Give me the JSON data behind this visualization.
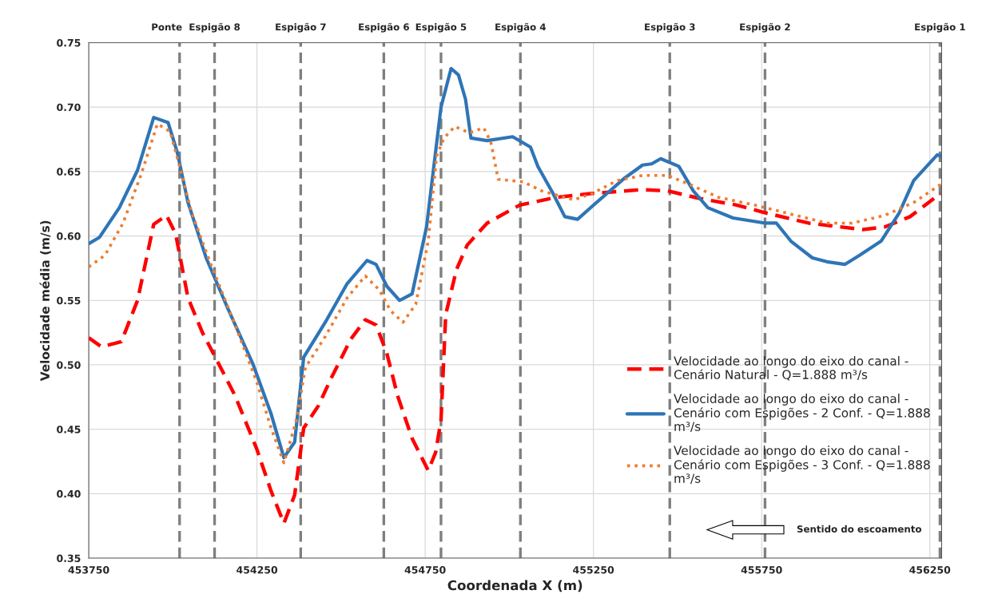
{
  "chart_data": {
    "type": "line",
    "xlabel": "Coordenada X (m)",
    "ylabel": "Velocidade média (m/s)",
    "xlim": [
      453750,
      456285
    ],
    "xticks": [
      453750,
      454250,
      454750,
      455250,
      455750,
      456250
    ],
    "ylim": [
      0.35,
      0.75
    ],
    "yticks": [
      0.35,
      {
        "value": 0.4,
        "label": "0.40"
      },
      0.45,
      {
        "value": 0.5,
        "label": "0.50"
      },
      0.55,
      {
        "value": 0.6,
        "label": "0.60"
      },
      0.65,
      {
        "value": 0.7,
        "label": "0.70"
      },
      0.75
    ],
    "grid": true,
    "legend": "bottom right",
    "marker": "none",
    "series": [
      {
        "name": "Velocidade ao longo do eixo do canal -\nCenário Natural - Q=1.888 m³/s",
        "color": "#ff0000",
        "line_style": "dashed",
        "x": [
          453750,
          453788,
          453847,
          453895,
          453943,
          453981,
          454008,
          454045,
          454088,
          454126,
          454185,
          454249,
          454292,
          454330,
          454362,
          454389,
          454432,
          454475,
          454529,
          454572,
          454604,
          454636,
          454668,
          454711,
          454759,
          454781,
          454797,
          454811,
          454843,
          454875,
          454934,
          455031,
          455139,
          455246,
          455396,
          455471,
          455568,
          455676,
          455761,
          455890,
          456051,
          456116,
          456191,
          456282
        ],
        "values": [
          0.521,
          0.514,
          0.518,
          0.55,
          0.609,
          0.616,
          0.602,
          0.552,
          0.525,
          0.506,
          0.476,
          0.435,
          0.402,
          0.377,
          0.399,
          0.451,
          0.468,
          0.492,
          0.52,
          0.535,
          0.531,
          0.509,
          0.476,
          0.443,
          0.418,
          0.432,
          0.457,
          0.539,
          0.574,
          0.593,
          0.61,
          0.624,
          0.63,
          0.633,
          0.636,
          0.635,
          0.629,
          0.624,
          0.618,
          0.61,
          0.605,
          0.607,
          0.615,
          0.633
        ]
      },
      {
        "name": "Velocidade ao longo do eixo do canal -\nCenário com Espigões - 2 Conf. - Q=1.888\nm³/s",
        "color": "#2e75b6",
        "line_style": "solid",
        "x": [
          453750,
          453782,
          453841,
          453895,
          453943,
          453986,
          454013,
          454045,
          454099,
          454163,
          454239,
          454292,
          454330,
          454362,
          454389,
          454453,
          454518,
          454577,
          454604,
          454636,
          454674,
          454711,
          454754,
          454797,
          454827,
          454849,
          454870,
          454886,
          454934,
          455010,
          455063,
          455085,
          455128,
          455165,
          455203,
          455246,
          455343,
          455396,
          455423,
          455450,
          455504,
          455547,
          455590,
          455665,
          455761,
          455794,
          455837,
          455901,
          455944,
          455998,
          456041,
          456105,
          456159,
          456202,
          456272,
          456282
        ],
        "values": [
          0.594,
          0.599,
          0.622,
          0.651,
          0.692,
          0.688,
          0.665,
          0.626,
          0.583,
          0.544,
          0.5,
          0.462,
          0.428,
          0.44,
          0.506,
          0.533,
          0.563,
          0.581,
          0.578,
          0.561,
          0.55,
          0.555,
          0.607,
          0.7,
          0.73,
          0.725,
          0.706,
          0.676,
          0.674,
          0.677,
          0.669,
          0.654,
          0.634,
          0.615,
          0.613,
          0.623,
          0.645,
          0.655,
          0.656,
          0.66,
          0.654,
          0.635,
          0.622,
          0.614,
          0.61,
          0.61,
          0.596,
          0.583,
          0.58,
          0.578,
          0.585,
          0.596,
          0.618,
          0.643,
          0.663,
          0.662
        ]
      },
      {
        "name": "Velocidade ao longo do eixo do canal -\nCenário com Espigões - 3 Conf. - Q=1.888\nm³/s",
        "color": "#ed7d31",
        "line_style": "dotted",
        "x": [
          453750,
          453798,
          453852,
          453906,
          453954,
          453992,
          454018,
          454056,
          454110,
          454185,
          454249,
          454292,
          454330,
          454367,
          454394,
          454453,
          454518,
          454572,
          454614,
          454647,
          454684,
          454722,
          454759,
          454784,
          454806,
          454838,
          454881,
          454924,
          454945,
          454967,
          455042,
          455096,
          455192,
          455246,
          455321,
          455396,
          455471,
          455536,
          455622,
          455729,
          455837,
          455944,
          456019,
          456116,
          456202,
          456282
        ],
        "values": [
          0.576,
          0.585,
          0.61,
          0.648,
          0.687,
          0.681,
          0.656,
          0.618,
          0.58,
          0.531,
          0.487,
          0.451,
          0.424,
          0.457,
          0.498,
          0.522,
          0.552,
          0.569,
          0.558,
          0.542,
          0.533,
          0.547,
          0.596,
          0.662,
          0.676,
          0.685,
          0.68,
          0.684,
          0.673,
          0.644,
          0.642,
          0.635,
          0.628,
          0.633,
          0.643,
          0.647,
          0.647,
          0.64,
          0.63,
          0.624,
          0.617,
          0.61,
          0.61,
          0.616,
          0.626,
          0.64
        ]
      }
    ],
    "ref_lines": [
      {
        "axis": "x",
        "value": 454020,
        "label": "Ponte",
        "color": "#7f7f7f",
        "line_style": "dashed"
      },
      {
        "axis": "x",
        "value": 454124,
        "label": "Espigão 8",
        "color": "#7f7f7f",
        "line_style": "dashed"
      },
      {
        "axis": "x",
        "value": 454380,
        "label": "Espigão 7",
        "color": "#7f7f7f",
        "line_style": "dashed"
      },
      {
        "axis": "x",
        "value": 454627,
        "label": "Espigão 6",
        "color": "#7f7f7f",
        "line_style": "dashed"
      },
      {
        "axis": "x",
        "value": 454797,
        "label": "Espigão 5",
        "color": "#7f7f7f",
        "line_style": "dashed"
      },
      {
        "axis": "x",
        "value": 455033,
        "label": "Espigão 4",
        "color": "#7f7f7f",
        "line_style": "dashed"
      },
      {
        "axis": "x",
        "value": 455477,
        "label": "Espigão 3",
        "color": "#7f7f7f",
        "line_style": "dashed"
      },
      {
        "axis": "x",
        "value": 455760,
        "label": "Espigão 2",
        "color": "#7f7f7f",
        "line_style": "dashed"
      },
      {
        "axis": "x",
        "value": 456280,
        "label": "Espigão 1",
        "color": "#7f7f7f",
        "line_style": "dashed"
      }
    ],
    "annotations": [
      "Sentido do escoamento"
    ]
  }
}
